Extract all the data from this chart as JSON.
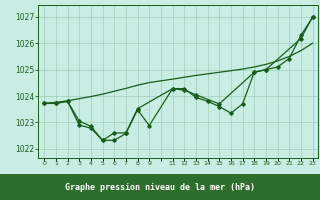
{
  "xlabel": "Graphe pression niveau de la mer (hPa)",
  "plot_bg": "#c8eee4",
  "fig_bg": "#c8eee4",
  "label_bg": "#2d6e2d",
  "label_fg": "#ffffff",
  "grid_color": "#a0ccb8",
  "line_color": "#1a5c1a",
  "ylim": [
    1021.65,
    1027.45
  ],
  "yticks": [
    1022,
    1023,
    1024,
    1025,
    1026,
    1027
  ],
  "x_all": [
    0,
    1,
    2,
    3,
    4,
    5,
    6,
    7,
    8,
    9,
    11,
    12,
    13,
    14,
    15,
    16,
    17,
    18,
    19,
    20,
    21,
    22,
    23
  ],
  "smooth_y": [
    1023.72,
    1023.76,
    1023.82,
    1023.9,
    1023.98,
    1024.07,
    1024.18,
    1024.29,
    1024.41,
    1024.51,
    1024.64,
    1024.71,
    1024.78,
    1024.84,
    1024.9,
    1024.96,
    1025.02,
    1025.1,
    1025.2,
    1025.33,
    1025.5,
    1025.72,
    1026.0
  ],
  "line1_x": [
    0,
    1,
    2,
    3,
    4,
    5,
    6,
    7,
    8,
    9,
    11,
    12,
    13,
    14,
    15,
    16,
    17,
    18,
    19,
    20,
    21,
    22,
    23
  ],
  "line1_y": [
    1023.72,
    1023.72,
    1023.8,
    1022.9,
    1022.78,
    1022.32,
    1022.32,
    1022.58,
    1023.48,
    1022.88,
    1024.28,
    1024.28,
    1023.95,
    1023.8,
    1023.6,
    1023.35,
    1023.7,
    1024.9,
    1025.0,
    1025.1,
    1025.42,
    1026.3,
    1026.98
  ],
  "line2_x": [
    0,
    1,
    2,
    3,
    4,
    5,
    6,
    7,
    8,
    11,
    12,
    13,
    15,
    18,
    19,
    22,
    23
  ],
  "line2_y": [
    1023.72,
    1023.72,
    1023.8,
    1023.05,
    1022.85,
    1022.32,
    1022.6,
    1022.6,
    1023.52,
    1024.28,
    1024.22,
    1024.05,
    1023.7,
    1024.9,
    1025.0,
    1026.18,
    1027.0
  ]
}
